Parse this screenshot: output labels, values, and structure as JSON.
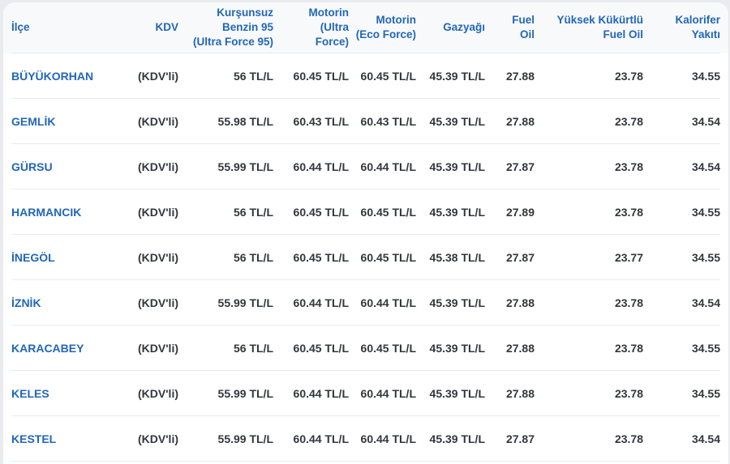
{
  "page": {
    "background_color": "#e9ebee",
    "card_background": "#ffffff",
    "header_background": "#f8f9fb"
  },
  "colors": {
    "accent_blue": "#2267b8",
    "text_dark": "#33363b",
    "row_border": "#e7eaf0"
  },
  "table": {
    "columns": [
      {
        "id": "ilce",
        "lines": [
          "İlçe"
        ],
        "align": "left"
      },
      {
        "id": "kdv",
        "lines": [
          "KDV"
        ],
        "align": "right"
      },
      {
        "id": "benzin-95",
        "lines": [
          "Kurşunsuz",
          "Benzin 95",
          "(Ultra Force 95)"
        ],
        "align": "right"
      },
      {
        "id": "motorin-ultra",
        "lines": [
          "Motorin",
          "(Ultra",
          "Force)"
        ],
        "align": "right"
      },
      {
        "id": "motorin-eco",
        "lines": [
          "Motorin",
          "(Eco Force)"
        ],
        "align": "right"
      },
      {
        "id": "gazyagi",
        "lines": [
          "Gazyağı"
        ],
        "align": "right"
      },
      {
        "id": "fuel-oil",
        "lines": [
          "Fuel",
          "Oil"
        ],
        "align": "right"
      },
      {
        "id": "yuksek-kukurtlu",
        "lines": [
          "Yüksek Kükürtlü",
          "Fuel Oil"
        ],
        "align": "right"
      },
      {
        "id": "kalorifer",
        "lines": [
          "Kalorifer",
          "Yakıtı"
        ],
        "align": "right"
      }
    ],
    "rows": [
      {
        "district": "BÜYÜKORHAN",
        "kdv": "(KDV'li)",
        "values": [
          "56 TL/L",
          "60.45 TL/L",
          "60.45 TL/L",
          "45.39 TL/L",
          "27.88",
          "23.78",
          "34.55"
        ]
      },
      {
        "district": "GEMLİK",
        "kdv": "(KDV'li)",
        "values": [
          "55.98 TL/L",
          "60.43 TL/L",
          "60.43 TL/L",
          "45.39 TL/L",
          "27.88",
          "23.78",
          "34.54"
        ]
      },
      {
        "district": "GÜRSU",
        "kdv": "(KDV'li)",
        "values": [
          "55.99 TL/L",
          "60.44 TL/L",
          "60.44 TL/L",
          "45.39 TL/L",
          "27.87",
          "23.78",
          "34.54"
        ]
      },
      {
        "district": "HARMANCIK",
        "kdv": "(KDV'li)",
        "values": [
          "56 TL/L",
          "60.45 TL/L",
          "60.45 TL/L",
          "45.39 TL/L",
          "27.89",
          "23.78",
          "34.55"
        ]
      },
      {
        "district": "İNEGÖL",
        "kdv": "(KDV'li)",
        "values": [
          "56 TL/L",
          "60.45 TL/L",
          "60.45 TL/L",
          "45.38 TL/L",
          "27.87",
          "23.77",
          "34.55"
        ]
      },
      {
        "district": "İZNİK",
        "kdv": "(KDV'li)",
        "values": [
          "55.99 TL/L",
          "60.44 TL/L",
          "60.44 TL/L",
          "45.39 TL/L",
          "27.88",
          "23.78",
          "34.54"
        ]
      },
      {
        "district": "KARACABEY",
        "kdv": "(KDV'li)",
        "values": [
          "56 TL/L",
          "60.45 TL/L",
          "60.45 TL/L",
          "45.39 TL/L",
          "27.88",
          "23.78",
          "34.55"
        ]
      },
      {
        "district": "KELES",
        "kdv": "(KDV'li)",
        "values": [
          "55.99 TL/L",
          "60.44 TL/L",
          "60.44 TL/L",
          "45.39 TL/L",
          "27.88",
          "23.78",
          "34.55"
        ]
      },
      {
        "district": "KESTEL",
        "kdv": "(KDV'li)",
        "values": [
          "55.99 TL/L",
          "60.44 TL/L",
          "60.44 TL/L",
          "45.39 TL/L",
          "27.87",
          "23.78",
          "34.54"
        ]
      }
    ]
  }
}
